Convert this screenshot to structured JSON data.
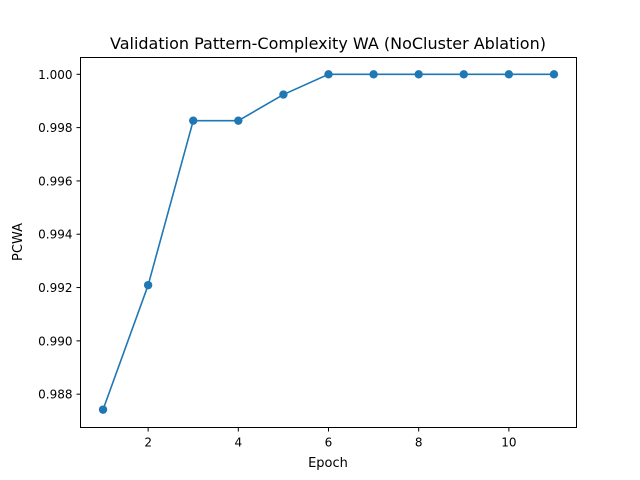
{
  "chart_data": {
    "type": "line",
    "title": "Validation Pattern-Complexity WA (NoCluster Ablation)",
    "xlabel": "Epoch",
    "ylabel": "PCWA",
    "x": [
      1,
      2,
      3,
      4,
      5,
      6,
      7,
      8,
      9,
      10,
      11
    ],
    "series": [
      {
        "values": [
          0.98742,
          0.99209,
          0.99826,
          0.99826,
          0.99924,
          1.0,
          1.0,
          1.0,
          1.0,
          1.0,
          1.0
        ],
        "color": "#1f77b4",
        "marker": "circle"
      }
    ],
    "xlim": [
      0.5,
      11.5
    ],
    "ylim": [
      0.98675,
      1.00063
    ],
    "xticks": [
      2,
      4,
      6,
      8,
      10
    ],
    "xtick_labels": [
      "2",
      "4",
      "6",
      "8",
      "10"
    ],
    "yticks": [
      0.988,
      0.99,
      0.992,
      0.994,
      0.996,
      0.998,
      1.0
    ],
    "ytick_labels": [
      "0.988",
      "0.990",
      "0.992",
      "0.994",
      "0.996",
      "0.998",
      "1.000"
    ],
    "grid": false,
    "legend": false
  }
}
